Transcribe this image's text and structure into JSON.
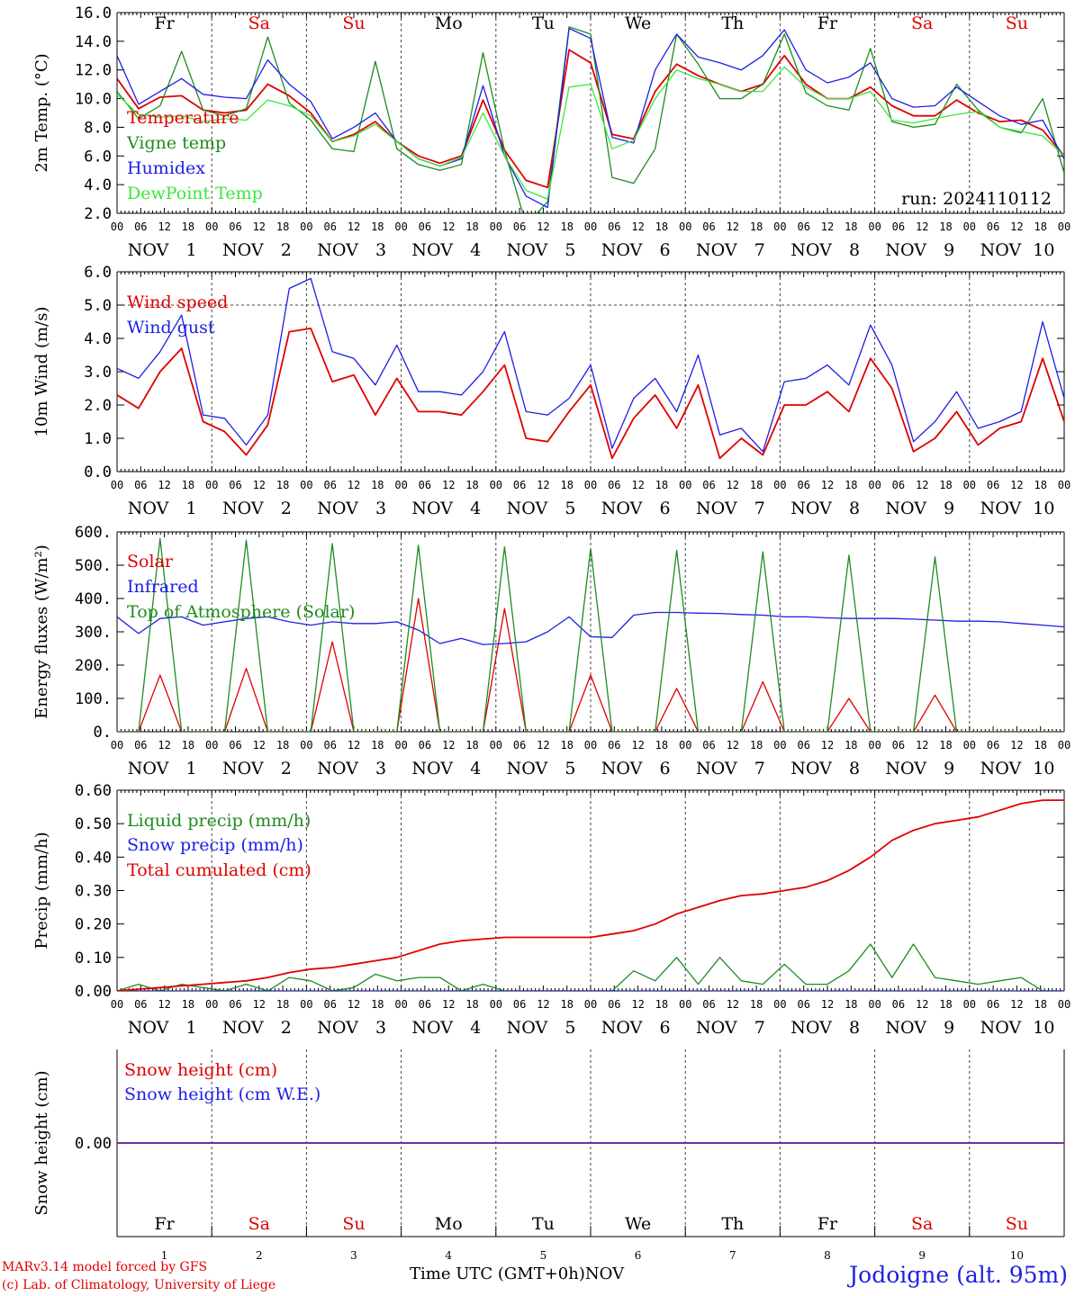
{
  "run_label": "run: 2024110112",
  "month": "NOV",
  "dates": [
    "1",
    "2",
    "3",
    "4",
    "5",
    "6",
    "7",
    "8",
    "9",
    "10"
  ],
  "days": [
    {
      "label": "Fr",
      "weekend": false
    },
    {
      "label": "Sa",
      "weekend": true
    },
    {
      "label": "Su",
      "weekend": true
    },
    {
      "label": "Mo",
      "weekend": false
    },
    {
      "label": "Tu",
      "weekend": false
    },
    {
      "label": "We",
      "weekend": false
    },
    {
      "label": "Th",
      "weekend": false
    },
    {
      "label": "Fr",
      "weekend": false
    },
    {
      "label": "Sa",
      "weekend": true
    },
    {
      "label": "Su",
      "weekend": true
    }
  ],
  "hour_ticks": [
    "00",
    "06",
    "12",
    "18"
  ],
  "colors": {
    "red": "#e00000",
    "green": "#1e8c1e",
    "blue": "#1e1ee6",
    "lightgreen": "#3ce63c",
    "purple": "#7030a0",
    "weekend": "#e00000",
    "footer_blue": "#2020e0"
  },
  "footer": {
    "model": "MARv3.14 model forced by GFS",
    "lab": "(c) Lab. of Climatology, University of Liege",
    "xlabel_main": "Time UTC (GMT+0h)",
    "xlabel_month": "NOV",
    "station": "Jodoigne (alt. 95m)"
  },
  "chart_data": [
    {
      "type": "line",
      "ylabel": "2m Temp. (°C)",
      "ylim": [
        2,
        16
      ],
      "yticks": [
        "2.0",
        "4.0",
        "6.0",
        "8.0",
        "10.0",
        "12.0",
        "14.0",
        "16.0"
      ],
      "hlines": [],
      "x_hours_step": 6,
      "series": [
        {
          "name": "Temperature",
          "color": "red",
          "values": [
            11.4,
            9.3,
            10.1,
            10.2,
            9.2,
            9.0,
            9.2,
            11.0,
            10.2,
            9.0,
            7.0,
            7.5,
            8.4,
            7.0,
            6.0,
            5.5,
            6.0,
            9.9,
            6.4,
            4.3,
            3.8,
            13.4,
            12.5,
            7.5,
            7.2,
            10.5,
            12.4,
            11.6,
            11.0,
            10.5,
            11.0,
            13.0,
            11.0,
            10.0,
            10.0,
            10.8,
            9.5,
            8.8,
            8.8,
            9.9,
            9.0,
            8.4,
            8.5,
            7.8,
            6.0
          ]
        },
        {
          "name": "Vigne temp",
          "color": "green",
          "values": [
            10.5,
            8.6,
            9.5,
            13.3,
            9.2,
            8.8,
            9.3,
            14.3,
            9.7,
            8.5,
            6.5,
            6.3,
            12.6,
            6.5,
            5.4,
            5.0,
            5.4,
            13.2,
            6.4,
            1.2,
            2.8,
            15.0,
            14.5,
            4.5,
            4.1,
            6.5,
            14.5,
            12.4,
            10.0,
            10.0,
            11.0,
            14.5,
            10.4,
            9.5,
            9.2,
            13.5,
            8.4,
            8.0,
            8.2,
            11.0,
            9.2,
            8.0,
            7.6,
            10.0,
            4.8
          ]
        },
        {
          "name": "Humidex",
          "color": "blue",
          "values": [
            13.0,
            9.6,
            10.5,
            11.4,
            10.3,
            10.1,
            10.0,
            12.7,
            11.0,
            9.8,
            7.2,
            8.0,
            9.0,
            7.0,
            5.8,
            5.3,
            5.8,
            10.9,
            6.0,
            3.2,
            2.4,
            14.9,
            14.2,
            7.3,
            6.9,
            12.0,
            14.5,
            12.9,
            12.5,
            12.0,
            13.0,
            14.8,
            12.0,
            11.1,
            11.5,
            12.5,
            10.0,
            9.4,
            9.5,
            10.8,
            9.8,
            8.8,
            8.2,
            8.5,
            5.8
          ]
        },
        {
          "name": "DewPoint Temp",
          "color": "lightgreen",
          "values": [
            10.3,
            8.9,
            8.7,
            8.8,
            8.4,
            8.6,
            8.5,
            9.9,
            9.5,
            8.8,
            7.0,
            7.4,
            8.2,
            7.0,
            5.8,
            5.3,
            5.9,
            9.0,
            6.0,
            3.6,
            3.0,
            10.8,
            11.0,
            6.5,
            7.1,
            10.0,
            12.0,
            11.4,
            11.0,
            10.5,
            10.5,
            12.2,
            10.8,
            10.0,
            10.0,
            10.5,
            8.5,
            8.3,
            8.6,
            8.9,
            9.1,
            8.0,
            7.7,
            7.4,
            6.0
          ]
        }
      ]
    },
    {
      "type": "line",
      "ylabel": "10m Wind (m/s)",
      "ylim": [
        0,
        6
      ],
      "yticks": [
        "0.0",
        "1.0",
        "2.0",
        "3.0",
        "4.0",
        "5.0",
        "6.0"
      ],
      "hlines": [
        5
      ],
      "x_hours_step": 6,
      "series": [
        {
          "name": "Wind speed",
          "color": "red",
          "values": [
            2.3,
            1.9,
            3.0,
            3.7,
            1.5,
            1.2,
            0.5,
            1.4,
            4.2,
            4.3,
            2.7,
            2.9,
            1.7,
            2.8,
            1.8,
            1.8,
            1.7,
            2.4,
            3.2,
            1.0,
            0.9,
            1.8,
            2.6,
            0.4,
            1.6,
            2.3,
            1.3,
            2.6,
            0.4,
            1.0,
            0.5,
            2.0,
            2.0,
            2.4,
            1.8,
            3.4,
            2.5,
            0.6,
            1.0,
            1.8,
            0.8,
            1.3,
            1.5,
            3.4,
            1.5
          ]
        },
        {
          "name": "Wind gust",
          "color": "blue",
          "values": [
            3.1,
            2.8,
            3.6,
            4.7,
            1.7,
            1.6,
            0.8,
            1.7,
            5.5,
            5.8,
            3.6,
            3.4,
            2.6,
            3.8,
            2.4,
            2.4,
            2.3,
            3.0,
            4.2,
            1.8,
            1.7,
            2.2,
            3.2,
            0.7,
            2.2,
            2.8,
            1.8,
            3.5,
            1.1,
            1.3,
            0.6,
            2.7,
            2.8,
            3.2,
            2.6,
            4.4,
            3.2,
            0.9,
            1.5,
            2.4,
            1.3,
            1.5,
            1.8,
            4.5,
            2.2
          ]
        }
      ]
    },
    {
      "type": "line",
      "ylabel": "Energy fluxes (W/m²)",
      "ylim": [
        0,
        600
      ],
      "yticks": [
        "0.",
        "100.",
        "200.",
        "300.",
        "400.",
        "500.",
        "600."
      ],
      "hlines": [],
      "x_hours_step": 6,
      "series": [
        {
          "name": "Solar",
          "color": "red",
          "values": [
            0,
            0,
            170,
            0,
            0,
            0,
            190,
            0,
            0,
            0,
            270,
            0,
            0,
            0,
            400,
            0,
            0,
            0,
            370,
            0,
            0,
            0,
            170,
            0,
            0,
            0,
            130,
            0,
            0,
            0,
            150,
            0,
            0,
            0,
            100,
            0,
            0,
            0,
            110,
            0,
            0,
            0,
            0,
            0,
            0
          ]
        },
        {
          "name": "Infrared",
          "color": "blue",
          "values": [
            345,
            295,
            340,
            345,
            320,
            330,
            340,
            345,
            330,
            320,
            330,
            325,
            325,
            330,
            305,
            265,
            280,
            262,
            265,
            270,
            300,
            345,
            285,
            283,
            350,
            358,
            358,
            356,
            355,
            352,
            350,
            345,
            345,
            342,
            340,
            340,
            340,
            338,
            335,
            332,
            332,
            330,
            325,
            320,
            315
          ]
        },
        {
          "name": "Top of Atmosphere (Solar)",
          "color": "green",
          "values": [
            0,
            0,
            580,
            0,
            0,
            0,
            575,
            0,
            0,
            0,
            565,
            0,
            0,
            0,
            560,
            0,
            0,
            0,
            555,
            0,
            0,
            0,
            550,
            0,
            0,
            0,
            545,
            0,
            0,
            0,
            540,
            0,
            0,
            0,
            530,
            0,
            0,
            0,
            525,
            0,
            0,
            0,
            0,
            0,
            0
          ]
        }
      ]
    },
    {
      "type": "line",
      "ylabel": "Precip (mm/h)",
      "ylim": [
        0,
        0.6
      ],
      "yticks": [
        "0.00",
        "0.10",
        "0.20",
        "0.30",
        "0.40",
        "0.50",
        "0.60"
      ],
      "hlines": [],
      "x_hours_step": 6,
      "series": [
        {
          "name": "Liquid precip (mm/h)",
          "color": "green",
          "values": [
            0,
            0.02,
            0,
            0.02,
            0.01,
            0,
            0.02,
            0,
            0.04,
            0.03,
            0,
            0.01,
            0.05,
            0.03,
            0.04,
            0.04,
            0,
            0.02,
            0,
            0,
            0,
            0,
            0,
            0,
            0.06,
            0.03,
            0.1,
            0.02,
            0.1,
            0.03,
            0.02,
            0.08,
            0.02,
            0.02,
            0.06,
            0.14,
            0.04,
            0.14,
            0.04,
            0.03,
            0.02,
            0.03,
            0.04,
            0,
            0
          ]
        },
        {
          "name": "Snow precip (mm/h)",
          "color": "blue",
          "values": [
            0,
            0,
            0,
            0,
            0,
            0,
            0,
            0,
            0,
            0,
            0,
            0,
            0,
            0,
            0,
            0,
            0,
            0,
            0,
            0,
            0,
            0,
            0,
            0,
            0,
            0,
            0,
            0,
            0,
            0,
            0,
            0,
            0,
            0,
            0,
            0,
            0,
            0,
            0,
            0,
            0,
            0,
            0,
            0,
            0
          ]
        },
        {
          "name": "Total cumulated (cm)",
          "color": "red",
          "values": [
            0,
            0.005,
            0.01,
            0.015,
            0.02,
            0.025,
            0.03,
            0.04,
            0.055,
            0.065,
            0.07,
            0.08,
            0.09,
            0.1,
            0.12,
            0.14,
            0.15,
            0.155,
            0.16,
            0.16,
            0.16,
            0.16,
            0.16,
            0.17,
            0.18,
            0.2,
            0.23,
            0.25,
            0.27,
            0.285,
            0.29,
            0.3,
            0.31,
            0.33,
            0.36,
            0.4,
            0.45,
            0.48,
            0.5,
            0.51,
            0.52,
            0.54,
            0.56,
            0.57,
            0.57
          ]
        }
      ]
    },
    {
      "type": "line",
      "ylabel": "Snow height (cm)",
      "ylim": [
        -1,
        1
      ],
      "yticks": [
        "0.00"
      ],
      "ytick_values": [
        0
      ],
      "hlines": [],
      "x_hours_step": 6,
      "series": [
        {
          "name": "Snow height (cm)",
          "color": "red",
          "values": [
            0,
            0
          ]
        },
        {
          "name": "Snow height (cm W.E.)",
          "color": "blue",
          "values": [
            0,
            0
          ]
        }
      ],
      "flat_line_color": "purple"
    }
  ]
}
